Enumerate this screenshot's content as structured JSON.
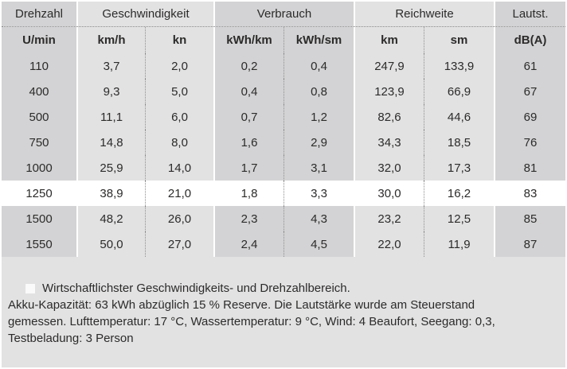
{
  "table": {
    "groups": [
      {
        "label": "Drehzahl"
      },
      {
        "label": "Geschwindigkeit"
      },
      {
        "label": "Verbrauch"
      },
      {
        "label": "Reichweite"
      },
      {
        "label": "Lautst."
      }
    ],
    "units": [
      "U/min",
      "km/h",
      "kn",
      "kWh/km",
      "kWh/sm",
      "km",
      "sm",
      "dB(A)"
    ],
    "rows": [
      {
        "cells": [
          "110",
          "3,7",
          "2,0",
          "0,2",
          "0,4",
          "247,9",
          "133,9",
          "61"
        ]
      },
      {
        "cells": [
          "400",
          "9,3",
          "5,0",
          "0,4",
          "0,8",
          "123,9",
          "66,9",
          "67"
        ]
      },
      {
        "cells": [
          "500",
          "11,1",
          "6,0",
          "0,7",
          "1,2",
          "82,6",
          "44,6",
          "69"
        ]
      },
      {
        "cells": [
          "750",
          "14,8",
          "8,0",
          "1,6",
          "2,9",
          "34,3",
          "18,5",
          "76"
        ]
      },
      {
        "cells": [
          "1000",
          "25,9",
          "14,0",
          "1,7",
          "3,1",
          "32,0",
          "17,3",
          "81"
        ]
      },
      {
        "cells": [
          "1250",
          "38,9",
          "21,0",
          "1,8",
          "3,3",
          "30,0",
          "16,2",
          "83"
        ]
      },
      {
        "cells": [
          "1500",
          "48,2",
          "26,0",
          "2,3",
          "4,3",
          "23,2",
          "12,5",
          "85"
        ]
      },
      {
        "cells": [
          "1550",
          "50,0",
          "27,0",
          "2,4",
          "4,5",
          "22,0",
          "11,9",
          "87"
        ]
      }
    ],
    "highlighted_row_value": "1250"
  },
  "footnote": {
    "legend": "Wirtschaftlichster Geschwindigkeits- und Drehzahlbereich.",
    "lines": [
      "Akku-Kapazität: 63 kWh abzüglich 15 % Reserve. Die Lautstärke wurde am Steuerstand",
      "gemessen. Lufttemperatur: 17 °C, Wassertemperatur: 9 °C, Wind: 4 Beaufort, Seegang: 0,3,",
      "Testbeladung: 3 Person"
    ]
  },
  "colors": {
    "highlight_row": "#ffffff",
    "dark_group": "#d3d3d5",
    "light_group": "#e2e2e3",
    "text": "#2c2b2a"
  },
  "chart_data": {
    "type": "table",
    "title": "",
    "column_groups": [
      "Drehzahl",
      "Geschwindigkeit",
      "Verbrauch",
      "Reichweite",
      "Lautst."
    ],
    "columns": [
      "Drehzahl U/min",
      "Geschwindigkeit km/h",
      "Geschwindigkeit kn",
      "Verbrauch kWh/km",
      "Verbrauch kWh/sm",
      "Reichweite km",
      "Reichweite sm",
      "Lautstärke dB(A)"
    ],
    "rows": [
      [
        110,
        3.7,
        2.0,
        0.2,
        0.4,
        247.9,
        133.9,
        61
      ],
      [
        400,
        9.3,
        5.0,
        0.4,
        0.8,
        123.9,
        66.9,
        67
      ],
      [
        500,
        11.1,
        6.0,
        0.7,
        1.2,
        82.6,
        44.6,
        69
      ],
      [
        750,
        14.8,
        8.0,
        1.6,
        2.9,
        34.3,
        18.5,
        76
      ],
      [
        1000,
        25.9,
        14.0,
        1.7,
        3.1,
        32.0,
        17.3,
        81
      ],
      [
        1250,
        38.9,
        21.0,
        1.8,
        3.3,
        30.0,
        16.2,
        83
      ],
      [
        1500,
        48.2,
        26.0,
        2.3,
        4.3,
        23.2,
        12.5,
        85
      ],
      [
        1550,
        50.0,
        27.0,
        2.4,
        4.5,
        22.0,
        11.9,
        87
      ]
    ],
    "highlighted_row_index": 5,
    "notes": "Wirtschaftlichster Geschwindigkeits- und Drehzahlbereich. Akku-Kapazität: 63 kWh abzüglich 15 % Reserve. Die Lautstärke wurde am Steuerstand gemessen. Lufttemperatur: 17 °C, Wassertemperatur: 9 °C, Wind: 4 Beaufort, Seegang: 0,3, Testbeladung: 3 Person"
  }
}
